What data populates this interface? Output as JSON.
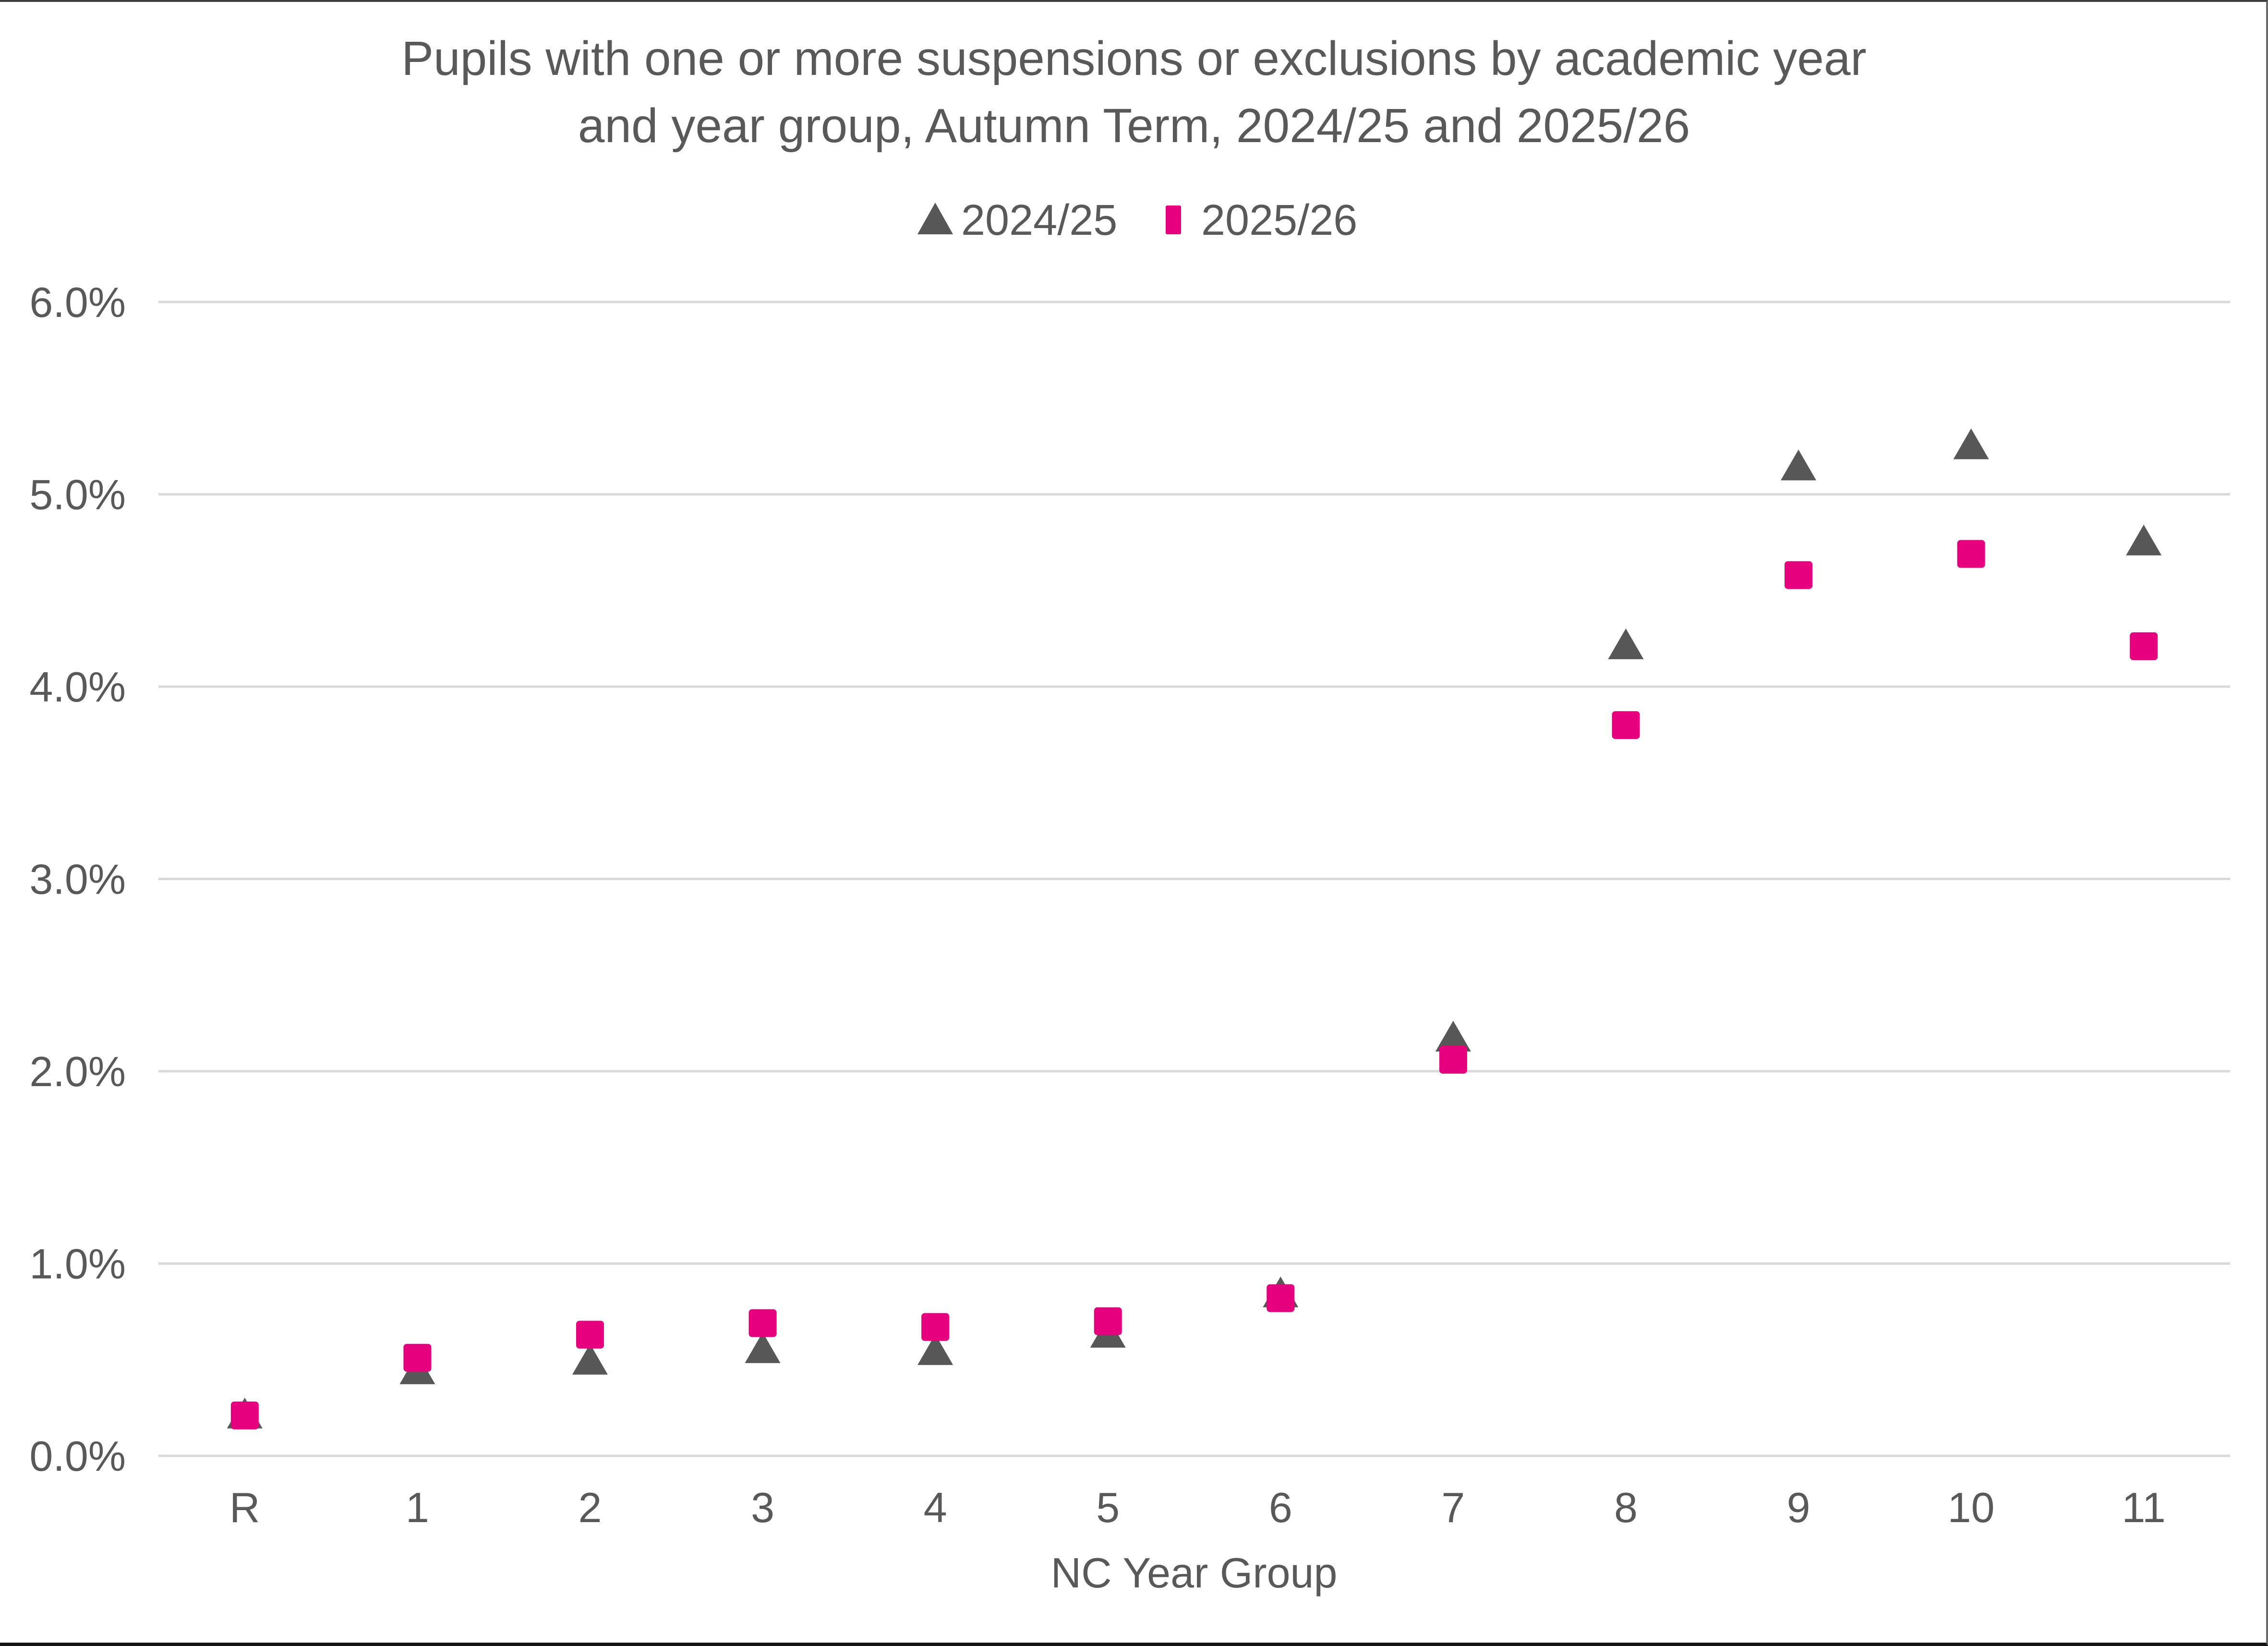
{
  "title": {
    "line1": "Pupils with one or more suspensions or exclusions by academic year",
    "line2": "and year group, Autumn Term, 2024/25 and 2025/26"
  },
  "legend": {
    "items": [
      {
        "label": "2024/25",
        "marker": "triangle",
        "color": "#575757"
      },
      {
        "label": "2025/26",
        "marker": "square",
        "color": "#E6007E"
      }
    ]
  },
  "axes": {
    "y_ticks": [
      "0.0%",
      "1.0%",
      "2.0%",
      "3.0%",
      "4.0%",
      "5.0%",
      "6.0%"
    ],
    "x_label": "NC Year Group"
  },
  "frame": {
    "gridline_color": "#D9D9D9",
    "text_color": "#595959",
    "background": "#FFFFFF"
  },
  "chart_data": {
    "type": "scatter",
    "title": "Pupils with one or more suspensions or exclusions by academic year and year group, Autumn Term, 2024/25 and 2025/26",
    "xlabel": "NC Year Group",
    "ylabel": "",
    "ylim": [
      0,
      6
    ],
    "y_tick_step": 1,
    "y_tick_format": "percent_1dp",
    "grid": true,
    "legend_position": "top",
    "categories": [
      "R",
      "1",
      "2",
      "3",
      "4",
      "5",
      "6",
      "7",
      "8",
      "9",
      "10",
      "11"
    ],
    "series": [
      {
        "name": "2024/25",
        "marker": "triangle",
        "color": "#575757",
        "values": [
          0.22,
          0.45,
          0.5,
          0.56,
          0.55,
          0.64,
          0.85,
          2.18,
          4.22,
          5.15,
          5.26,
          4.76
        ]
      },
      {
        "name": "2025/26",
        "marker": "square",
        "color": "#E6007E",
        "values": [
          0.21,
          0.51,
          0.63,
          0.69,
          0.67,
          0.7,
          0.82,
          2.06,
          3.8,
          4.58,
          4.69,
          4.21
        ]
      }
    ]
  }
}
